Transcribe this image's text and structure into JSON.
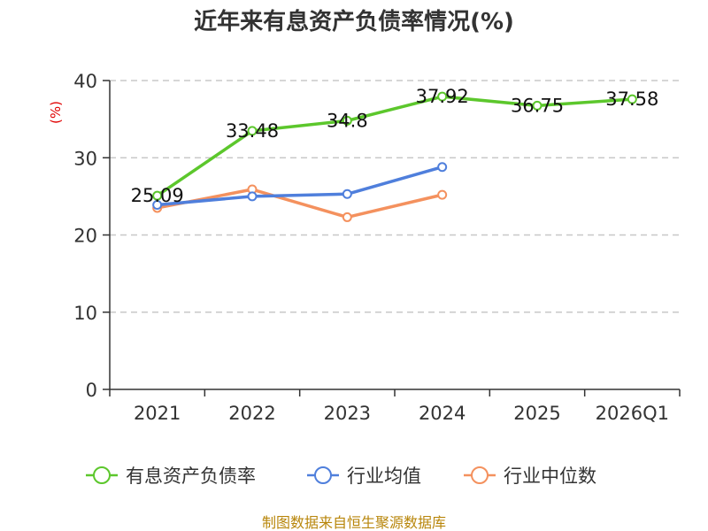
{
  "chart_data": {
    "type": "line",
    "title": "近年来有息资产负债率情况(%)",
    "ylabel": "(%)",
    "ylim": [
      0,
      40
    ],
    "yticks": [
      0,
      10,
      20,
      30,
      40
    ],
    "categories": [
      "2021",
      "2022",
      "2023",
      "2024",
      "2025",
      "2026Q1"
    ],
    "grid": true,
    "legend_position": "bottom",
    "series": [
      {
        "name": "有息资产负债率",
        "color": "#5cc72c",
        "values": [
          25.09,
          33.48,
          34.8,
          37.92,
          36.75,
          37.58
        ],
        "labels": [
          "25.09",
          "33.48",
          "34.8",
          "37.92",
          "36.75",
          "37.58"
        ],
        "show_labels": true
      },
      {
        "name": "行业均值",
        "color": "#4f7fdc",
        "values": [
          23.9,
          25.0,
          25.3,
          28.8,
          null,
          null
        ],
        "show_labels": false
      },
      {
        "name": "行业中位数",
        "color": "#f4915e",
        "values": [
          23.5,
          25.9,
          22.3,
          25.2,
          null,
          null
        ],
        "show_labels": false
      }
    ],
    "source": "制图数据来自恒生聚源数据库"
  }
}
